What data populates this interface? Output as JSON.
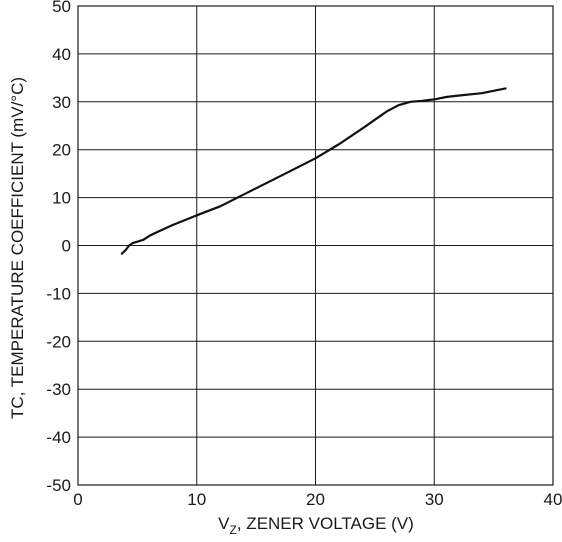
{
  "chart_data": {
    "type": "line",
    "xlabel": {
      "main": "V",
      "sub": "Z",
      "rest": ", ZENER VOLTAGE (V)"
    },
    "ylabel": "TC,  TEMPERATURE COEFFICIENT (mV/°C)",
    "xlim": [
      0,
      40
    ],
    "ylim": [
      -50,
      50
    ],
    "x_ticks": [
      "0",
      "10",
      "20",
      "30",
      "40"
    ],
    "y_ticks": [
      "50",
      "40",
      "30",
      "20",
      "10",
      "0",
      "-10",
      "-20",
      "-30",
      "-40",
      "-50"
    ],
    "grid": true,
    "series": [
      {
        "x": [
          3.7,
          4.0,
          4.3,
          4.6,
          5.0,
          5.5,
          6.0,
          6.5,
          7.0,
          8.0,
          9.0,
          10.0,
          12.0,
          14.0,
          16.0,
          18.0,
          20.0,
          22.0,
          24.0,
          26.0,
          27.0,
          28.0,
          29.0,
          30.0,
          31.0,
          32.0,
          34.0,
          36.0
        ],
        "y": [
          -1.7,
          -1.0,
          0.0,
          0.5,
          0.8,
          1.2,
          2.0,
          2.6,
          3.2,
          4.3,
          5.3,
          6.3,
          8.2,
          10.7,
          13.2,
          15.7,
          18.2,
          21.2,
          24.5,
          28.0,
          29.3,
          30.0,
          30.2,
          30.5,
          31.0,
          31.3,
          31.8,
          32.8
        ]
      }
    ]
  }
}
